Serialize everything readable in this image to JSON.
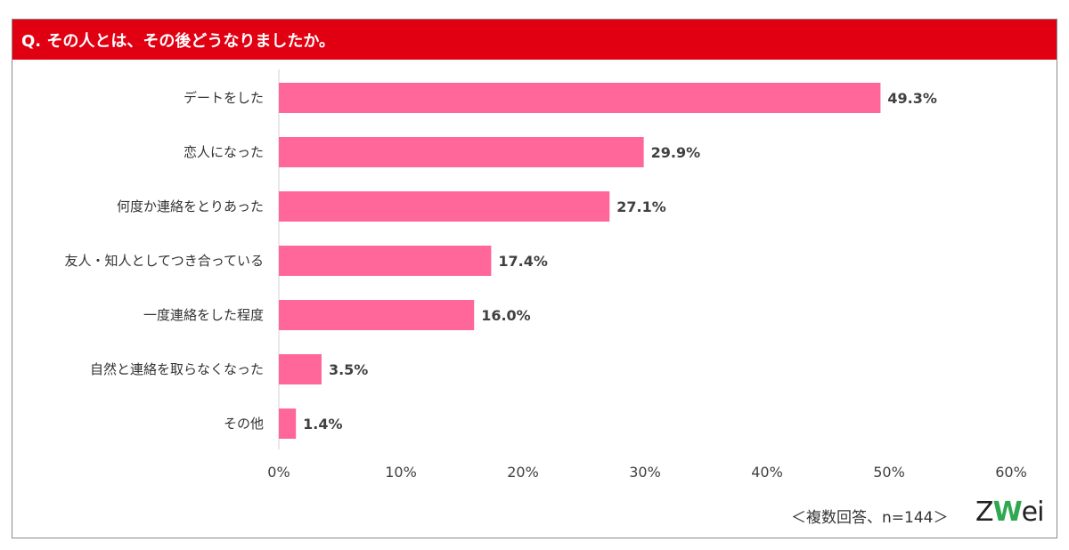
{
  "header": {
    "title": "Q. その人とは、その後どうなりましたか。"
  },
  "footnote": "＜複数回答、n=144＞",
  "logo": {
    "z": "Z",
    "w": "W",
    "rest": "ei"
  },
  "colors": {
    "header": "#e00012",
    "bar": "#ff6699",
    "frame": "#8a8a8a"
  },
  "chart_data": {
    "type": "bar",
    "orientation": "horizontal",
    "categories": [
      "デートをした",
      "恋人になった",
      "何度か連絡をとりあった",
      "友人・知人としてつき合っている",
      "一度連絡をした程度",
      "自然と連絡を取らなくなった",
      "その他"
    ],
    "values": [
      49.3,
      29.9,
      27.1,
      17.4,
      16.0,
      3.5,
      1.4
    ],
    "value_labels": [
      "49.3%",
      "29.9%",
      "27.1%",
      "17.4%",
      "16.0%",
      "3.5%",
      "1.4%"
    ],
    "xlim": [
      0,
      60
    ],
    "ticks": [
      0,
      10,
      20,
      30,
      40,
      50,
      60
    ],
    "tick_labels": [
      "0%",
      "10%",
      "20%",
      "30%",
      "40%",
      "50%",
      "60%"
    ],
    "grid": false
  }
}
